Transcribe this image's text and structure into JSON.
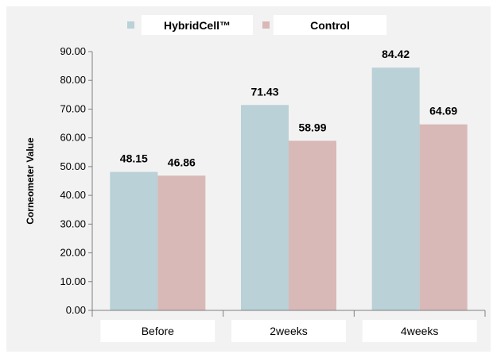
{
  "chart_data": {
    "type": "bar",
    "categories": [
      "Before",
      "2weeks",
      "4weeks"
    ],
    "series": [
      {
        "name": "HybridCell™",
        "values": [
          48.15,
          71.43,
          84.42
        ],
        "color": "#b9d1d7"
      },
      {
        "name": "Control",
        "values": [
          46.86,
          58.99,
          64.69
        ],
        "color": "#d8b9b7"
      }
    ],
    "data_labels": [
      [
        "48.15",
        "71.43",
        "84.42"
      ],
      [
        "46.86",
        "58.99",
        "64.69"
      ]
    ],
    "ylabel": "Corneometer Value",
    "xlabel": "",
    "ylim": [
      0,
      90
    ],
    "yticks": [
      "0.00",
      "10.00",
      "20.00",
      "30.00",
      "40.00",
      "50.00",
      "60.00",
      "70.00",
      "80.00",
      "90.00"
    ],
    "grid": false,
    "legend_position": "top-center",
    "background_color": "#f2f2f2"
  }
}
